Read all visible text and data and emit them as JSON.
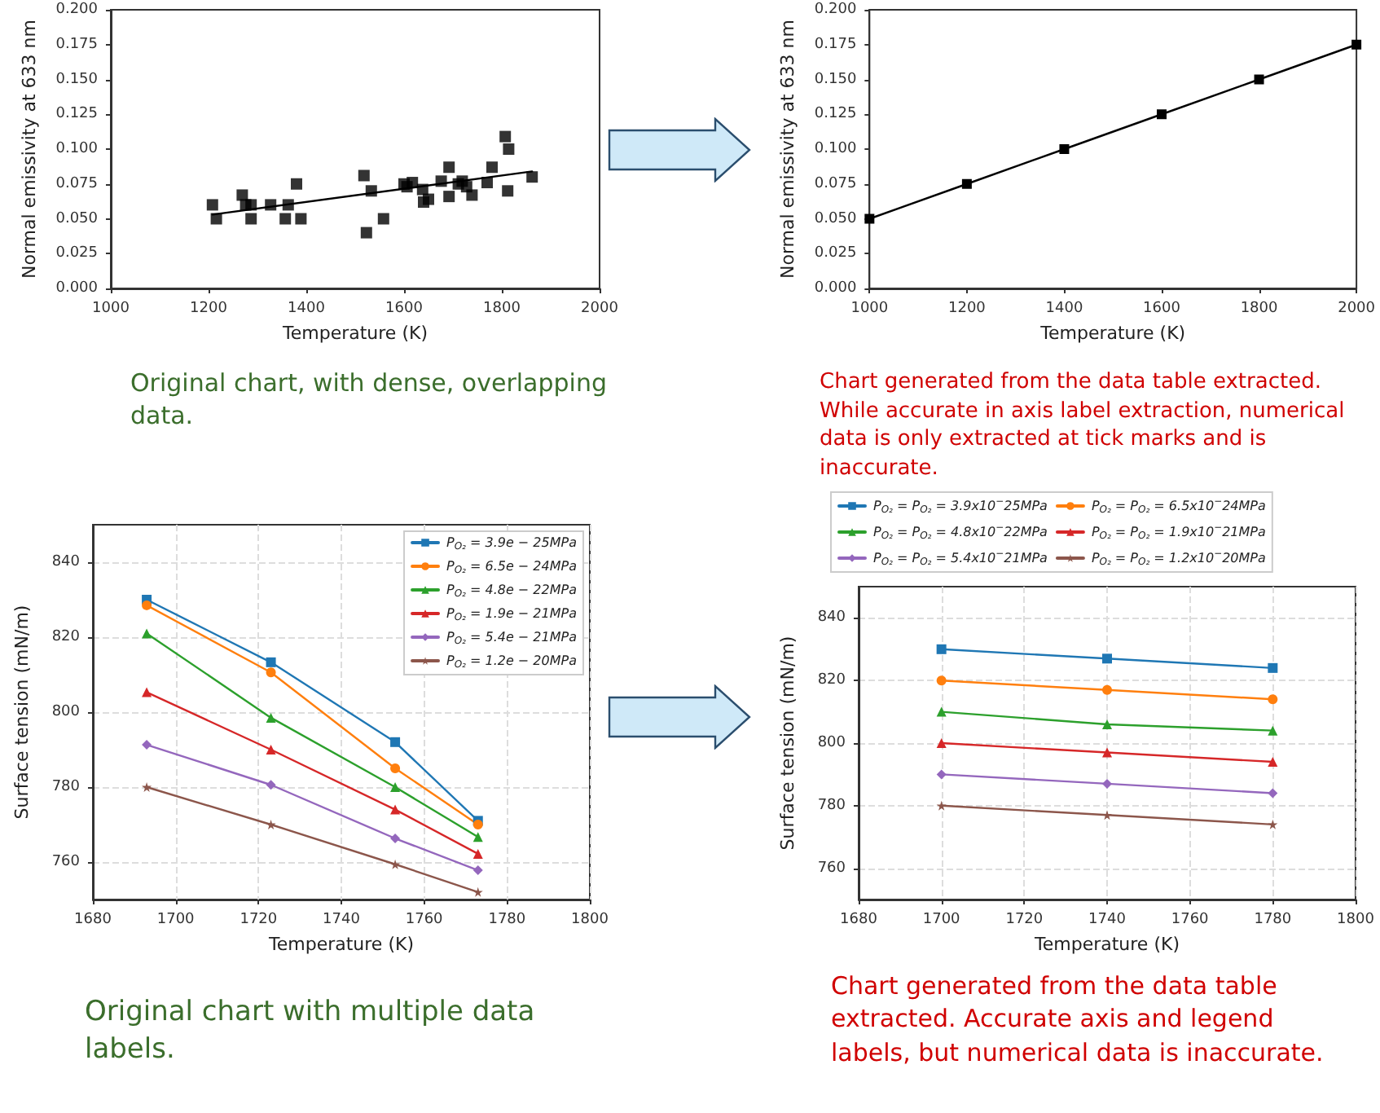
{
  "chart_data": [
    {
      "type": "scatter",
      "xlabel": "Temperature (K)",
      "ylabel": "Normal emissivity at 633 nm",
      "annotations": [
        "Original chart, with dense, overlapping data."
      ],
      "xlim": [
        1000,
        2000
      ],
      "xticks": [
        1000,
        1200,
        1400,
        1600,
        1800,
        2000
      ],
      "ylim": [
        0,
        0.2
      ],
      "yticks": [
        {
          "value": 0,
          "label": "0.000"
        },
        {
          "value": 0.025,
          "label": "0.025"
        },
        {
          "value": 0.05,
          "label": "0.050"
        },
        {
          "value": 0.075,
          "label": "0.075"
        },
        {
          "value": 0.1,
          "label": "0.100"
        },
        {
          "value": 0.125,
          "label": "0.125"
        },
        {
          "value": 0.15,
          "label": "0.150"
        },
        {
          "value": 0.175,
          "label": "0.175"
        },
        {
          "value": 0.2,
          "label": "0.200"
        }
      ],
      "marker": "square",
      "series": [
        {
          "color": "#000000",
          "x": [
            1208,
            1216,
            1269,
            1276,
            1287,
            1287,
            1327,
            1357,
            1363,
            1380,
            1389,
            1518,
            1523,
            1533,
            1558,
            1600,
            1606,
            1617,
            1638,
            1640,
            1650,
            1676,
            1692,
            1692,
            1711,
            1719,
            1728,
            1739,
            1770,
            1780,
            1807,
            1814,
            1812,
            1862
          ],
          "values": [
            0.06,
            0.05,
            0.067,
            0.06,
            0.06,
            0.05,
            0.06,
            0.05,
            0.06,
            0.075,
            0.05,
            0.081,
            0.04,
            0.07,
            0.05,
            0.075,
            0.073,
            0.076,
            0.071,
            0.062,
            0.064,
            0.077,
            0.087,
            0.066,
            0.075,
            0.077,
            0.073,
            0.067,
            0.076,
            0.087,
            0.109,
            0.1,
            0.07,
            0.08
          ]
        },
        {
          "type": "line",
          "marker": "none",
          "color": "#000000",
          "x": [
            1208,
            1862
          ],
          "values": [
            0.053,
            0.084
          ]
        }
      ]
    },
    {
      "type": "line",
      "xlabel": "Temperature (K)",
      "ylabel": "Normal emissivity at 633 nm",
      "annotations": [
        "Chart generated from the data table extracted. While accurate in axis label extraction, numerical data is only extracted at tick marks and is inaccurate."
      ],
      "xlim": [
        1000,
        2000
      ],
      "xticks": [
        1000,
        1200,
        1400,
        1600,
        1800,
        2000
      ],
      "ylim": [
        0,
        0.2
      ],
      "yticks": [
        {
          "value": 0,
          "label": "0.000"
        },
        {
          "value": 0.025,
          "label": "0.025"
        },
        {
          "value": 0.05,
          "label": "0.050"
        },
        {
          "value": 0.075,
          "label": "0.075"
        },
        {
          "value": 0.1,
          "label": "0.100"
        },
        {
          "value": 0.125,
          "label": "0.125"
        },
        {
          "value": 0.15,
          "label": "0.150"
        },
        {
          "value": 0.175,
          "label": "0.175"
        },
        {
          "value": 0.2,
          "label": "0.200"
        }
      ],
      "marker": "square",
      "color": "#000000",
      "x": [
        1000,
        1200,
        1400,
        1600,
        1800,
        2000
      ],
      "values": [
        0.05,
        0.075,
        0.1,
        0.125,
        0.15,
        0.175
      ]
    },
    {
      "type": "line",
      "xlabel": "Temperature (K)",
      "ylabel": "Surface tension (mN/m)",
      "annotations": [
        "Original chart with multiple data labels."
      ],
      "xlim": [
        1680,
        1800
      ],
      "xticks": [
        1680,
        1700,
        1720,
        1740,
        1760,
        1780,
        1800
      ],
      "ylim": [
        750,
        850
      ],
      "yticks": [
        760,
        780,
        800,
        820,
        840
      ],
      "grid": true,
      "legend": "top right",
      "x": [
        1693,
        1723,
        1753,
        1773
      ],
      "series": [
        {
          "name": "P$_{O₂}$ = 3.9e − 25MPa",
          "color": "#1f77b4",
          "marker": "square",
          "values": [
            830,
            813.3,
            792,
            771
          ]
        },
        {
          "name": "P$_{O₂}$ = 6.5e − 24MPa",
          "color": "#ff7f0e",
          "marker": "circle",
          "values": [
            828.5,
            810.6,
            785,
            770
          ]
        },
        {
          "name": "P$_{O₂}$ = 4.8e − 22MPa",
          "color": "#2ca02c",
          "marker": "triangle",
          "values": [
            821,
            798.5,
            780,
            766.7
          ]
        },
        {
          "name": "P$_{O₂}$ = 1.9e − 21MPa",
          "color": "#d62728",
          "marker": "triangle",
          "values": [
            805.3,
            790,
            774,
            762.2
          ]
        },
        {
          "name": "P$_{O₂}$ = 5.4e − 21MPa",
          "color": "#9467bd",
          "marker": "diamond",
          "values": [
            791.3,
            780.6,
            766.3,
            757.8
          ]
        },
        {
          "name": "P$_{O₂}$ = 1.2e − 20MPa",
          "color": "#8c564b",
          "marker": "star",
          "values": [
            780,
            770,
            759.4,
            752
          ]
        }
      ]
    },
    {
      "type": "line",
      "xlabel": "Temperature (K)",
      "ylabel": "Surface tension (mN/m)",
      "annotations": [
        "Chart generated from the data table extracted. Accurate axis and legend labels, but numerical data is inaccurate."
      ],
      "xlim": [
        1680,
        1800
      ],
      "xticks": [
        1680,
        1700,
        1720,
        1740,
        1760,
        1780,
        1800
      ],
      "ylim": [
        750,
        850
      ],
      "yticks": [
        760,
        780,
        800,
        820,
        840
      ],
      "grid": true,
      "legend": "top",
      "x": [
        1700,
        1740,
        1780
      ],
      "series": [
        {
          "name": "P$_{O₂}$ = P$_{O₂}$ = 3.9x10$^{−}$25MPa",
          "color": "#1f77b4",
          "marker": "square",
          "values": [
            830,
            827,
            824
          ]
        },
        {
          "name": "P$_{O₂}$ = P$_{O₂}$ = 6.5x10$^{−}$24MPa",
          "color": "#ff7f0e",
          "marker": "circle",
          "values": [
            820,
            817,
            814
          ]
        },
        {
          "name": "P$_{O₂}$ = P$_{O₂}$ = 4.8x10$^{−}$22MPa",
          "color": "#2ca02c",
          "marker": "triangle",
          "values": [
            810,
            806,
            804
          ]
        },
        {
          "name": "P$_{O₂}$ = P$_{O₂}$ = 1.9x10$^{−}$21MPa",
          "color": "#d62728",
          "marker": "triangle",
          "values": [
            800,
            797,
            794
          ]
        },
        {
          "name": "P$_{O₂}$ = P$_{O₂}$ = 5.4x10$^{−}$21MPa",
          "color": "#9467bd",
          "marker": "diamond",
          "values": [
            790,
            787,
            784
          ]
        },
        {
          "name": "P$_{O₂}$ = P$_{O₂}$ = 1.2x10$^{−}$20MPa",
          "color": "#8c564b",
          "marker": "star",
          "values": [
            780,
            777,
            774
          ]
        }
      ]
    }
  ]
}
